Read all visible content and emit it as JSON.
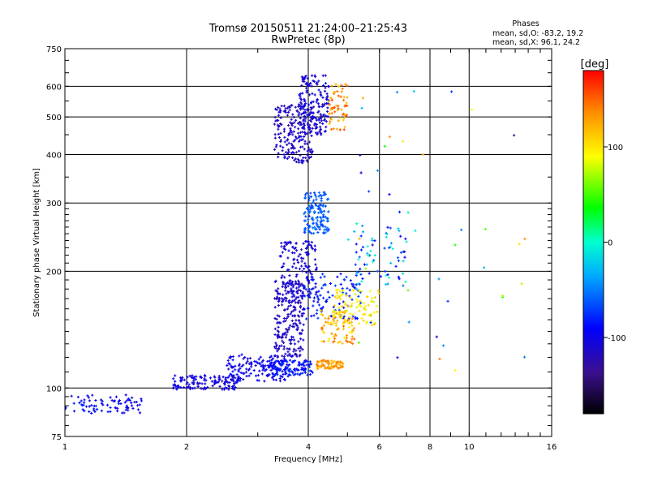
{
  "chart_data": {
    "type": "scatter",
    "title": "Tromsø 20150511 21:24:00–21:25:43",
    "subtitle": "RwPretec (8p)",
    "xlabel": "Frequency [MHz]",
    "ylabel": "Stationary phase Virtual Height [km]",
    "x_scale": "log",
    "y_scale": "log",
    "xlim": [
      1,
      16
    ],
    "ylim": [
      75,
      750
    ],
    "x_ticks": [
      1,
      2,
      4,
      6,
      8,
      10,
      16
    ],
    "x_tick_labels": [
      "1",
      "2",
      "4",
      "6",
      "8",
      "10",
      "16"
    ],
    "y_ticks": [
      75,
      100,
      200,
      300,
      400,
      500,
      600,
      750
    ],
    "y_tick_labels": [
      "75",
      "100",
      "200",
      "300",
      "400",
      "500",
      "600",
      "750"
    ],
    "grid": true,
    "phase_info": {
      "heading": "Phases",
      "line_o": "mean, sd,O: -83.2, 19.2",
      "line_x": "mean, sd,X:  96.1, 24.2"
    },
    "colorbar": {
      "label": "[deg]",
      "range": [
        -180,
        180
      ],
      "ticks": [
        100,
        0,
        -100
      ],
      "tick_labels": [
        "100",
        "0",
        "-100"
      ]
    },
    "clusters": [
      {
        "n": 80,
        "x": [
          1.0,
          1.55
        ],
        "y": [
          86,
          96
        ],
        "phase": -95,
        "spread": 18
      },
      {
        "n": 130,
        "x": [
          1.85,
          2.7
        ],
        "y": [
          99,
          108
        ],
        "phase": -105,
        "spread": 15
      },
      {
        "n": 140,
        "x": [
          2.5,
          3.6
        ],
        "y": [
          104,
          122
        ],
        "phase": -100,
        "spread": 15
      },
      {
        "n": 120,
        "x": [
          3.2,
          4.1
        ],
        "y": [
          108,
          118
        ],
        "phase": -85,
        "spread": 12
      },
      {
        "n": 220,
        "x": [
          3.3,
          3.9
        ],
        "y": [
          120,
          190
        ],
        "phase": -115,
        "spread": 12
      },
      {
        "n": 140,
        "x": [
          3.4,
          4.2
        ],
        "y": [
          170,
          240
        ],
        "phase": -110,
        "spread": 12
      },
      {
        "n": 200,
        "x": [
          3.3,
          4.1
        ],
        "y": [
          380,
          540
        ],
        "phase": -115,
        "spread": 12
      },
      {
        "n": 160,
        "x": [
          3.8,
          4.5
        ],
        "y": [
          450,
          640
        ],
        "phase": -110,
        "spread": 12
      },
      {
        "n": 140,
        "x": [
          3.9,
          4.5
        ],
        "y": [
          250,
          320
        ],
        "phase": -60,
        "spread": 12
      },
      {
        "n": 100,
        "x": [
          3.9,
          5.4
        ],
        "y": [
          150,
          200
        ],
        "phase": -80,
        "spread": 15
      },
      {
        "n": 70,
        "x": [
          4.2,
          4.9
        ],
        "y": [
          112,
          118
        ],
        "phase": 130,
        "spread": 20
      },
      {
        "n": 80,
        "x": [
          4.3,
          5.2
        ],
        "y": [
          130,
          160
        ],
        "phase": 120,
        "spread": 30
      },
      {
        "n": 90,
        "x": [
          4.6,
          6.0
        ],
        "y": [
          145,
          180
        ],
        "phase": 95,
        "spread": 20
      },
      {
        "n": 60,
        "x": [
          4.5,
          5.0
        ],
        "y": [
          460,
          620
        ],
        "phase": 135,
        "spread": 25
      },
      {
        "n": 70,
        "x": [
          5.2,
          7.0
        ],
        "y": [
          180,
          260
        ],
        "phase": -50,
        "spread": 60
      },
      {
        "n": 45,
        "x": [
          5.0,
          14.0
        ],
        "y": [
          110,
          620
        ],
        "phase": 0,
        "spread": 140
      }
    ]
  }
}
